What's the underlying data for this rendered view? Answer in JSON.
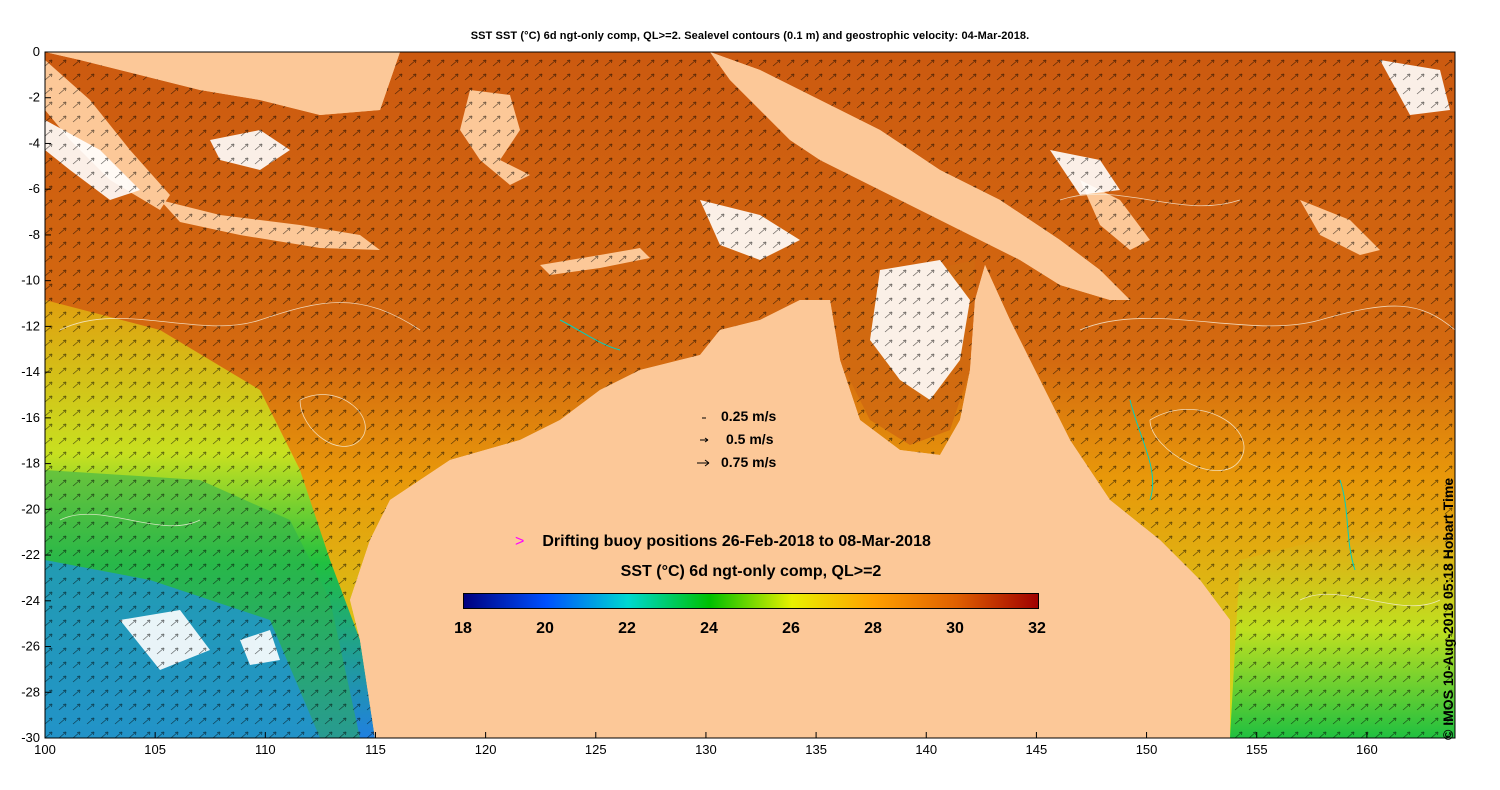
{
  "title": "SST SST (°C) 6d ngt-only comp, QL>=2. Sealevel contours (0.1 m) and geostrophic velocity: 04-Mar-2018.",
  "credit": "© IMOS 10-Aug-2018 05:18 Hobart Time",
  "x_ticks": [
    "100",
    "105",
    "110",
    "115",
    "120",
    "125",
    "130",
    "135",
    "140",
    "145",
    "150",
    "155",
    "160"
  ],
  "y_ticks": [
    "0",
    "-2",
    "-4",
    "-6",
    "-8",
    "-10",
    "-12",
    "-14",
    "-16",
    "-18",
    "-20",
    "-22",
    "-24",
    "-26",
    "-28",
    "-30"
  ],
  "speed_legend": [
    {
      "label": "0.25 m/s",
      "value": 0.25
    },
    {
      "label": "0.5 m/s",
      "value": 0.5
    },
    {
      "label": "0.75 m/s",
      "value": 0.75
    }
  ],
  "buoy_legend": {
    "marker": ">",
    "marker_color": "#ff00ff",
    "label": "Drifting buoy positions 26-Feb-2018 to 08-Mar-2018"
  },
  "colorbar": {
    "title": "SST (°C) 6d ngt-only comp, QL>=2",
    "ticks": [
      "18",
      "20",
      "22",
      "24",
      "26",
      "28",
      "30",
      "32"
    ],
    "range": [
      18,
      32
    ],
    "colors": [
      "#00007f",
      "#0050ff",
      "#00d8d0",
      "#00c000",
      "#e8f000",
      "#ffa000",
      "#e06000",
      "#a00000"
    ]
  },
  "colors": {
    "land": "#fcc898",
    "warm_sea": "#d86a10",
    "mid_sea": "#f0a000",
    "cool_sea": "#20b030",
    "cold_sea": "#2090e0",
    "coast_line": "#00d0c0"
  }
}
